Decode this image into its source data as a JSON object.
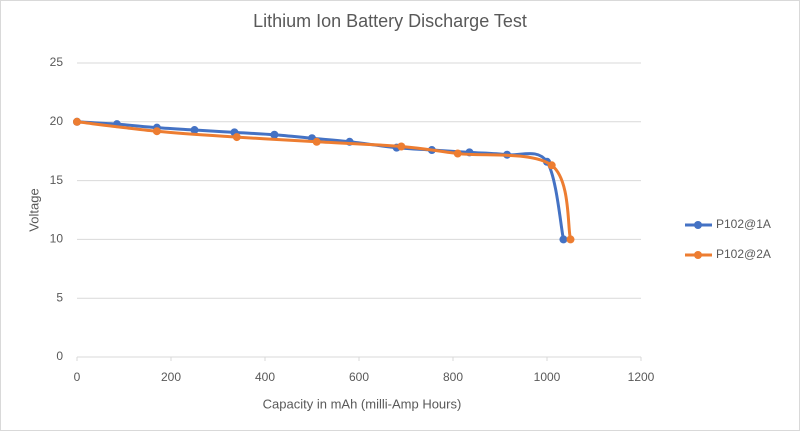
{
  "chart_data": {
    "type": "line",
    "title": "Lithium Ion Battery Discharge Test",
    "x_label": "Capacity in mAh (milli-Amp Hours)",
    "y_label": "Voltage",
    "series": [
      {
        "name": "P102@1A",
        "color": "#4472c4",
        "x": [
          0,
          85,
          170,
          250,
          335,
          420,
          500,
          580,
          680,
          755,
          835,
          915,
          1000,
          1035
        ],
        "values": [
          20,
          19.8,
          19.5,
          19.3,
          19.1,
          18.9,
          18.6,
          18.3,
          17.8,
          17.6,
          17.4,
          17.2,
          16.6,
          10
        ]
      },
      {
        "name": "P102@2A",
        "color": "#ed7d31",
        "x": [
          0,
          170,
          340,
          510,
          690,
          810,
          1010,
          1050
        ],
        "values": [
          20,
          19.2,
          18.7,
          18.3,
          17.9,
          17.3,
          16.3,
          10
        ]
      }
    ],
    "xlim": [
      0,
      1200
    ],
    "xticks": [
      0,
      200,
      400,
      600,
      800,
      1000,
      1200
    ],
    "ylim": [
      0,
      25
    ],
    "yticks": [
      0,
      5,
      10,
      15,
      20,
      25
    ],
    "grid": true,
    "smooth": true,
    "legend": "right"
  }
}
